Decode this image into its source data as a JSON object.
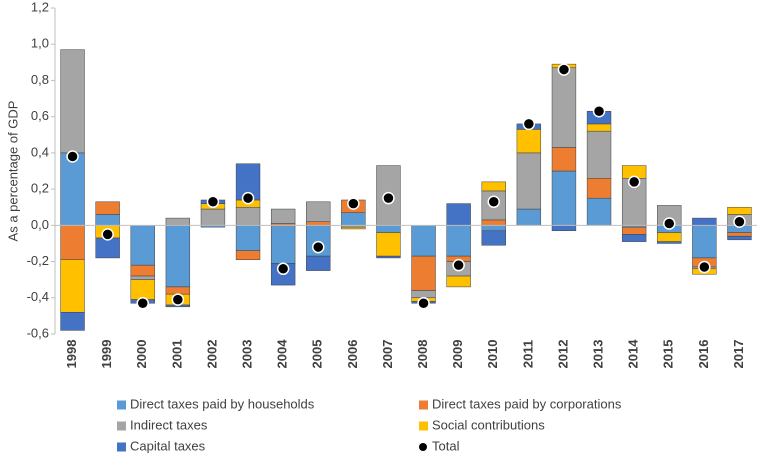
{
  "chart_data": {
    "type": "stacked_bar",
    "y_label": "As a percentage of GDP",
    "categories": [
      "1998",
      "1999",
      "2000",
      "2001",
      "2002",
      "2003",
      "2004",
      "2005",
      "2006",
      "2007",
      "2008",
      "2009",
      "2010",
      "2011",
      "2012",
      "2013",
      "2014",
      "2015",
      "2016",
      "2017"
    ],
    "series": [
      {
        "name": "Direct taxes paid by households",
        "color": "#5b9bd5",
        "values": [
          0.4,
          0.06,
          -0.22,
          -0.34,
          -0.01,
          -0.14,
          -0.21,
          -0.17,
          0.07,
          -0.04,
          -0.17,
          -0.17,
          -0.03,
          0.09,
          0.3,
          0.15,
          -0.01,
          -0.04,
          -0.18,
          -0.04
        ]
      },
      {
        "name": "Direct taxes paid by corporations",
        "color": "#ed7d31",
        "values": [
          -0.19,
          0.07,
          -0.06,
          -0.04,
          0,
          -0.05,
          0.01,
          0.02,
          0.07,
          0,
          -0.19,
          -0.03,
          0.03,
          0,
          0.13,
          0.11,
          -0.04,
          0,
          -0.05,
          -0.02
        ]
      },
      {
        "name": "Indirect taxes",
        "color": "#a5a5a5",
        "values": [
          0.57,
          0,
          -0.02,
          0.04,
          0.09,
          0.1,
          0.08,
          0.11,
          -0.01,
          0.33,
          -0.04,
          -0.08,
          0.16,
          0.31,
          0.44,
          0.26,
          0.26,
          0.11,
          -0.01,
          0.06
        ]
      },
      {
        "name": "Social contributions",
        "color": "#ffc000",
        "values": [
          -0.29,
          -0.07,
          -0.11,
          -0.06,
          0.03,
          0.04,
          0,
          0,
          -0.01,
          -0.13,
          -0.02,
          -0.06,
          0.05,
          0.13,
          0.02,
          0.04,
          0.07,
          -0.05,
          -0.03,
          0.04
        ]
      },
      {
        "name": "Capital taxes",
        "color": "#4472c4",
        "values": [
          -0.1,
          -0.11,
          -0.02,
          -0.01,
          0.02,
          0.2,
          -0.12,
          -0.08,
          0,
          -0.01,
          -0.01,
          0.12,
          -0.08,
          0.03,
          -0.03,
          0.07,
          -0.04,
          -0.01,
          0.04,
          -0.02
        ]
      }
    ],
    "total": {
      "name": "Total",
      "color": "#000000",
      "values": [
        0.38,
        -0.05,
        -0.43,
        -0.41,
        0.13,
        0.15,
        -0.24,
        -0.12,
        0.12,
        0.15,
        -0.43,
        -0.22,
        0.13,
        0.56,
        0.86,
        0.63,
        0.24,
        0.01,
        -0.23,
        0.02
      ]
    },
    "ylim": [
      -0.6,
      1.2
    ],
    "yticks": [
      {
        "value": -0.6,
        "label": "-0,6"
      },
      {
        "value": -0.4,
        "label": "-0,4"
      },
      {
        "value": -0.2,
        "label": "-0,2"
      },
      {
        "value": 0,
        "label": "0,0"
      },
      {
        "value": 0.2,
        "label": "0,2"
      },
      {
        "value": 0.4,
        "label": "0,4"
      },
      {
        "value": 0.6,
        "label": "0,6"
      },
      {
        "value": 0.8,
        "label": "0,8"
      },
      {
        "value": 1.0,
        "label": "1,0"
      },
      {
        "value": 1.2,
        "label": "1,2"
      }
    ],
    "grid": false
  }
}
